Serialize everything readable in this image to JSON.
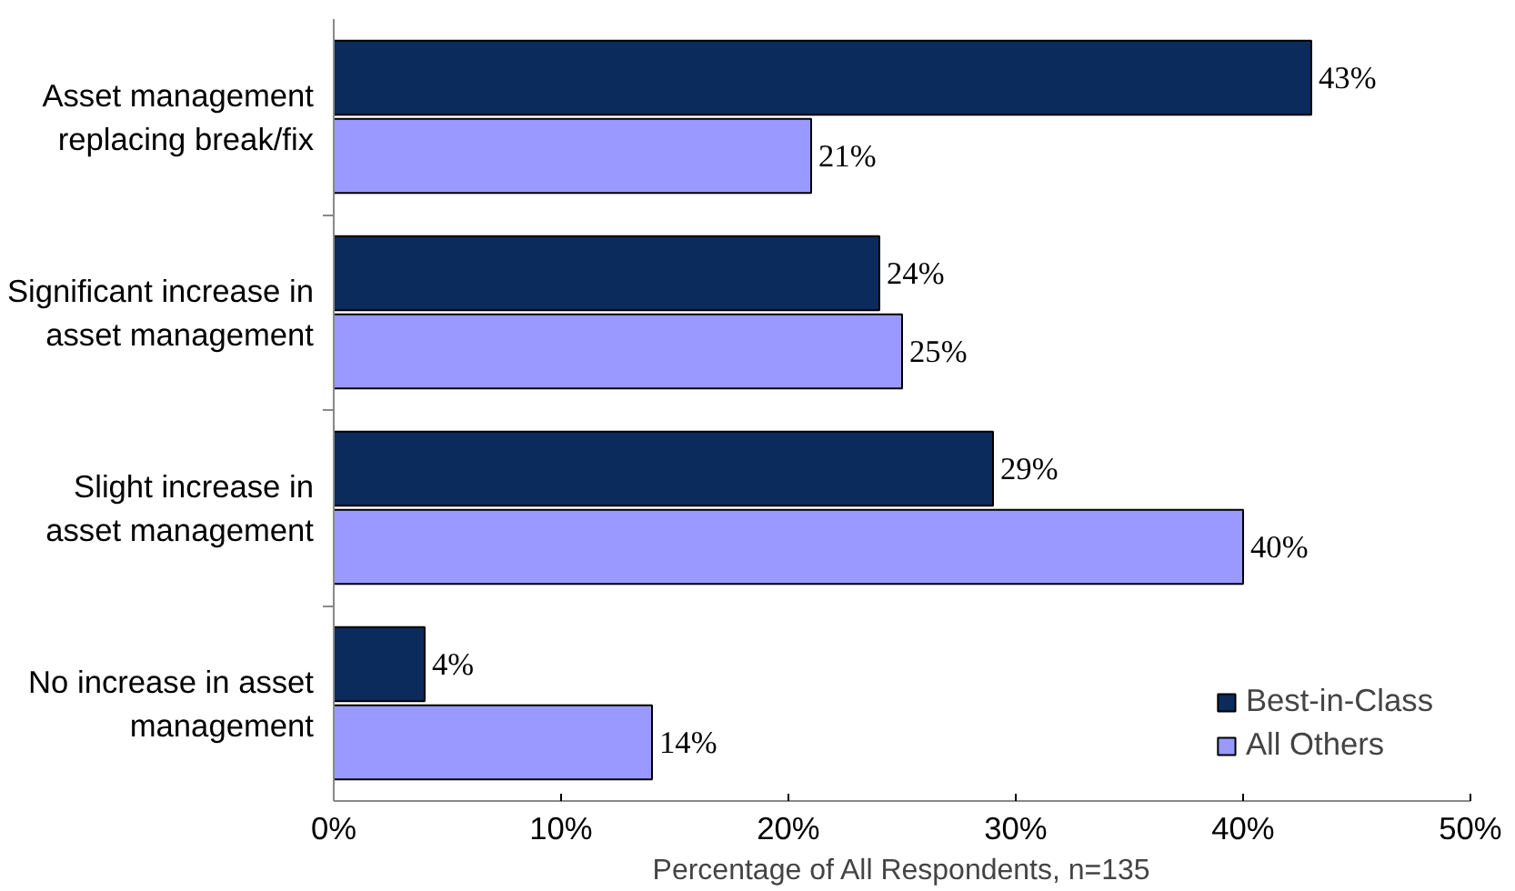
{
  "chart_data": {
    "type": "bar",
    "orientation": "horizontal",
    "xlabel": "Percentage of All Respondents, n=135",
    "categories": [
      "Asset management replacing break/fix",
      "Significant increase in asset management",
      "Slight increase in asset management",
      "No increase in asset management"
    ],
    "series": [
      {
        "name": "Best-in-Class",
        "color": "#0b2b5c",
        "values": [
          43,
          24,
          29,
          4
        ],
        "value_labels": [
          "43%",
          "24%",
          "29%",
          "4%"
        ]
      },
      {
        "name": "All Others",
        "color": "#9999ff",
        "values": [
          21,
          25,
          40,
          14
        ],
        "value_labels": [
          "21%",
          "25%",
          "40%",
          "14%"
        ]
      }
    ],
    "xlim": [
      0,
      50
    ],
    "xticks": [
      {
        "value": 0,
        "label": "0%"
      },
      {
        "value": 10,
        "label": "10%"
      },
      {
        "value": 20,
        "label": "20%"
      },
      {
        "value": 30,
        "label": "30%"
      },
      {
        "value": 40,
        "label": "40%"
      },
      {
        "value": 50,
        "label": "50%"
      }
    ],
    "grid": false,
    "legend": "bottom right"
  }
}
